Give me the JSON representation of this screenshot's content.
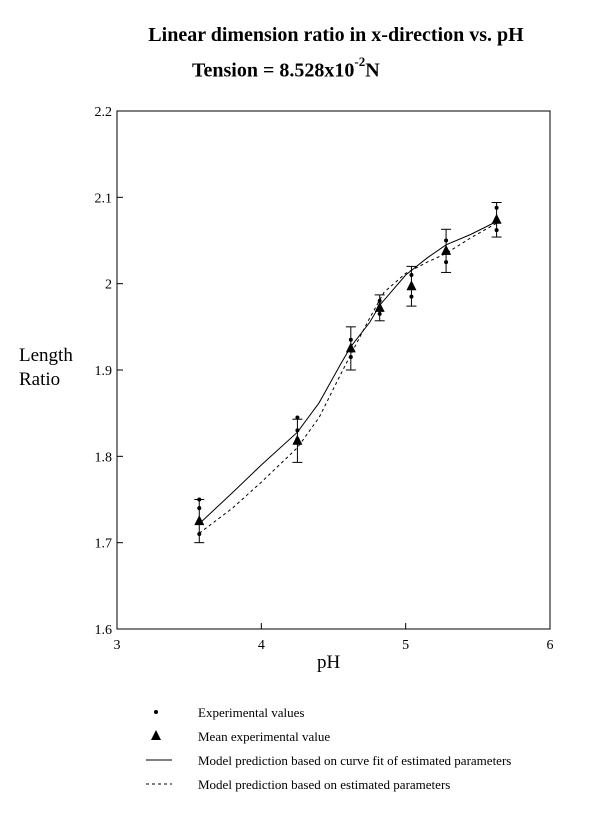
{
  "chart_data": {
    "type": "scatter",
    "title": "Linear dimension ratio in x-direction vs. pH",
    "subtitle_prefix": "Tension = 8.528x10",
    "subtitle_exp": "-2",
    "subtitle_unit": "N",
    "xlabel": "pH",
    "ylabel_line1": "Length",
    "ylabel_line2": "Ratio",
    "xlim": [
      3,
      6
    ],
    "ylim": [
      1.6,
      2.2
    ],
    "xticks": [
      "3",
      "4",
      "5",
      "6"
    ],
    "yticks": [
      "1.6",
      "1.7",
      "1.8",
      "1.9",
      "2",
      "2.1",
      "2.2"
    ],
    "grid": false,
    "legend_position": "bottom",
    "experimental_values": [
      {
        "x": 3.57,
        "y": 1.75
      },
      {
        "x": 3.57,
        "y": 1.74
      },
      {
        "x": 3.57,
        "y": 1.725
      },
      {
        "x": 3.57,
        "y": 1.71
      },
      {
        "x": 4.25,
        "y": 1.845
      },
      {
        "x": 4.25,
        "y": 1.83
      },
      {
        "x": 4.25,
        "y": 1.82
      },
      {
        "x": 4.62,
        "y": 1.935
      },
      {
        "x": 4.62,
        "y": 1.925
      },
      {
        "x": 4.62,
        "y": 1.915
      },
      {
        "x": 4.82,
        "y": 1.98
      },
      {
        "x": 4.82,
        "y": 1.972
      },
      {
        "x": 4.82,
        "y": 1.965
      },
      {
        "x": 5.04,
        "y": 2.01
      },
      {
        "x": 5.04,
        "y": 1.985
      },
      {
        "x": 5.28,
        "y": 2.05
      },
      {
        "x": 5.28,
        "y": 2.038
      },
      {
        "x": 5.28,
        "y": 2.025
      },
      {
        "x": 5.63,
        "y": 2.088
      },
      {
        "x": 5.63,
        "y": 2.075
      },
      {
        "x": 5.63,
        "y": 2.062
      }
    ],
    "mean_values": [
      {
        "x": 3.57,
        "y": 1.725,
        "err": 0.025
      },
      {
        "x": 4.25,
        "y": 1.818,
        "err": 0.025
      },
      {
        "x": 4.62,
        "y": 1.925,
        "err": 0.025
      },
      {
        "x": 4.82,
        "y": 1.972,
        "err": 0.015
      },
      {
        "x": 5.04,
        "y": 1.997,
        "err": 0.023
      },
      {
        "x": 5.28,
        "y": 2.038,
        "err": 0.025
      },
      {
        "x": 5.63,
        "y": 2.074,
        "err": 0.02
      }
    ],
    "model_curve_fit": {
      "x": [
        3.57,
        3.8,
        4.0,
        4.25,
        4.4,
        4.55,
        4.62,
        4.75,
        4.82,
        5.0,
        5.15,
        5.28,
        5.45,
        5.63
      ],
      "y": [
        1.722,
        1.758,
        1.79,
        1.828,
        1.862,
        1.907,
        1.927,
        1.955,
        1.975,
        2.01,
        2.03,
        2.045,
        2.057,
        2.072
      ]
    },
    "model_estimated": {
      "x": [
        3.57,
        3.8,
        4.0,
        4.25,
        4.4,
        4.55,
        4.62,
        4.75,
        4.85,
        5.0,
        5.15,
        5.28,
        5.45,
        5.63
      ],
      "y": [
        1.711,
        1.74,
        1.77,
        1.81,
        1.845,
        1.895,
        1.918,
        1.96,
        1.99,
        2.012,
        2.025,
        2.035,
        2.053,
        2.07
      ]
    },
    "legend": [
      "Experimental values",
      "Mean experimental value",
      "Model prediction based on curve fit of estimated parameters",
      "Model prediction based on estimated parameters"
    ]
  }
}
